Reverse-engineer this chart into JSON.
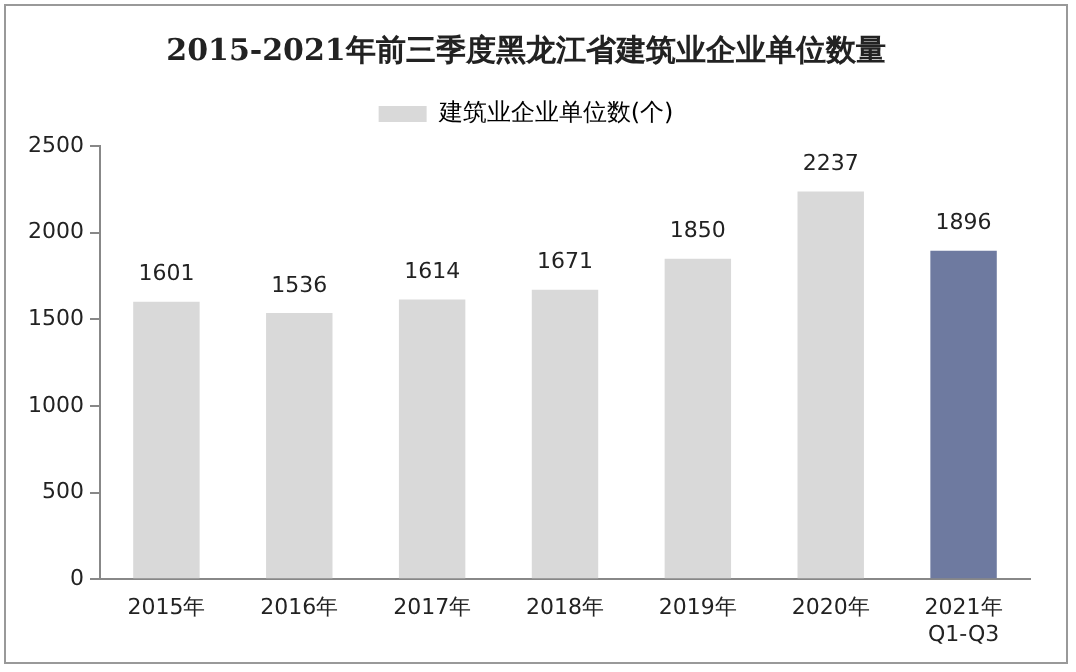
{
  "chart_data": {
    "type": "bar",
    "title": "2015-2021年前三季度黑龙江省建筑业企业单位数量",
    "categories": [
      "2015年",
      "2016年",
      "2017年",
      "2018年",
      "2019年",
      "2020年",
      "2021年\nQ1-Q3"
    ],
    "series": [
      {
        "name": "建筑业企业单位数(个)",
        "color": "#d9d9d9",
        "colors": [
          "#d9d9d9",
          "#d9d9d9",
          "#d9d9d9",
          "#d9d9d9",
          "#d9d9d9",
          "#d9d9d9",
          "#6e7aa0"
        ],
        "values": [
          1601,
          1536,
          1614,
          1671,
          1850,
          2237,
          1896
        ]
      }
    ],
    "ylim": [
      0,
      2500
    ],
    "yticks": [
      0,
      500,
      1000,
      1500,
      2000,
      2500
    ],
    "grid": false,
    "legend": "top",
    "data_labels": true
  }
}
